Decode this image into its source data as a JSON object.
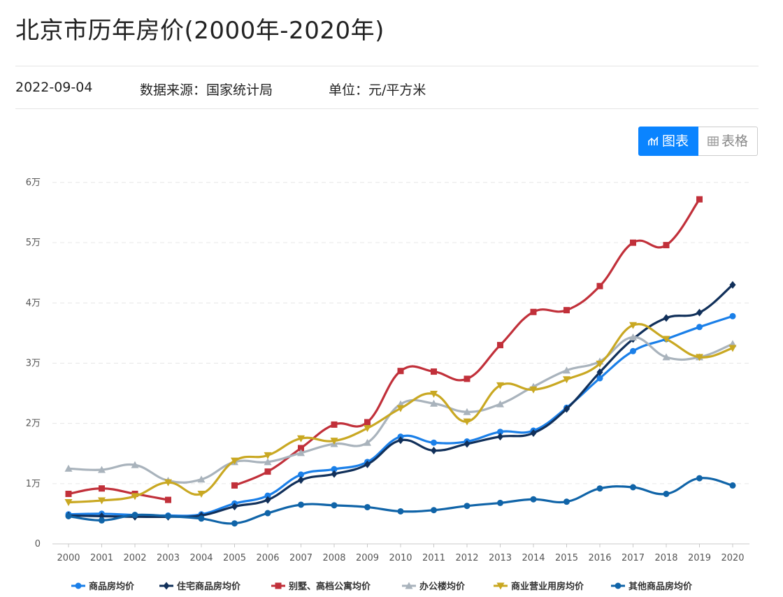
{
  "page": {
    "title": "北京市历年房价(2000年-2020年)",
    "date": "2022-09-04",
    "source": "数据来源：国家统计局",
    "unit": "单位：元/平方米"
  },
  "toggle": {
    "chart_label": "图表",
    "table_label": "表格",
    "chart_icon": "line-chart-icon",
    "table_icon": "table-grid-icon"
  },
  "colors": {
    "accent": "#0a84ff",
    "grid": "#e6e6e6",
    "axis": "#c8c8c8"
  },
  "chart_data": {
    "type": "line",
    "title": "",
    "xlabel": "",
    "ylabel": "",
    "x": [
      "2000",
      "2001",
      "2002",
      "2003",
      "2004",
      "2005",
      "2006",
      "2007",
      "2008",
      "2009",
      "2010",
      "2011",
      "2012",
      "2013",
      "2014",
      "2015",
      "2016",
      "2017",
      "2018",
      "2019",
      "2020"
    ],
    "ylim": [
      0,
      60000
    ],
    "yticks": [
      {
        "value": 0,
        "label": "0"
      },
      {
        "value": 10000,
        "label": "1万"
      },
      {
        "value": 20000,
        "label": "2万"
      },
      {
        "value": 30000,
        "label": "3万"
      },
      {
        "value": 40000,
        "label": "4万"
      },
      {
        "value": 50000,
        "label": "5万"
      },
      {
        "value": 60000,
        "label": "6万"
      }
    ],
    "grid": true,
    "legend_position": "bottom",
    "series": [
      {
        "name": "商品房均价",
        "color": "#1a7fe8",
        "marker": "circle",
        "values": [
          4900,
          5000,
          4800,
          4700,
          4900,
          6700,
          8000,
          11500,
          12400,
          13600,
          17800,
          16800,
          17000,
          18600,
          18800,
          22600,
          27500,
          32000,
          34000,
          36000,
          37800
        ]
      },
      {
        "name": "住宅商品房均价",
        "color": "#11305a",
        "marker": "diamond",
        "values": [
          4700,
          4600,
          4500,
          4500,
          4700,
          6200,
          7300,
          10600,
          11600,
          13200,
          17200,
          15500,
          16600,
          17800,
          18400,
          22400,
          28500,
          34000,
          37500,
          38400,
          43000
        ]
      },
      {
        "name": "别墅、高档公寓均价",
        "color": "#c1303a",
        "marker": "square",
        "values": [
          8300,
          9200,
          8300,
          7300,
          null,
          9700,
          12000,
          15900,
          19800,
          20200,
          28700,
          28600,
          27400,
          33000,
          38500,
          38800,
          42800,
          50000,
          49600,
          57200,
          null
        ]
      },
      {
        "name": "办公楼均价",
        "color": "#a9b3bc",
        "marker": "triangle-up",
        "values": [
          12500,
          12300,
          13100,
          10500,
          10700,
          13600,
          13600,
          15100,
          16600,
          16800,
          23200,
          23300,
          21900,
          23200,
          26100,
          28800,
          30300,
          34300,
          31000,
          31000,
          33200
        ]
      },
      {
        "name": "商业营业用房均价",
        "color": "#c9a822",
        "marker": "triangle-down",
        "values": [
          6900,
          7200,
          7900,
          10200,
          8300,
          13800,
          14700,
          17500,
          17100,
          19200,
          22500,
          24900,
          20300,
          26300,
          25600,
          27300,
          29900,
          36300,
          34000,
          31000,
          32500
        ]
      },
      {
        "name": "其他商品房均价",
        "color": "#1064a8",
        "marker": "circle",
        "values": [
          4600,
          3900,
          4800,
          4600,
          4200,
          3400,
          5100,
          6500,
          6400,
          6100,
          5400,
          5600,
          6300,
          6800,
          7400,
          7000,
          9200,
          9400,
          8300,
          10900,
          9700
        ]
      }
    ]
  }
}
